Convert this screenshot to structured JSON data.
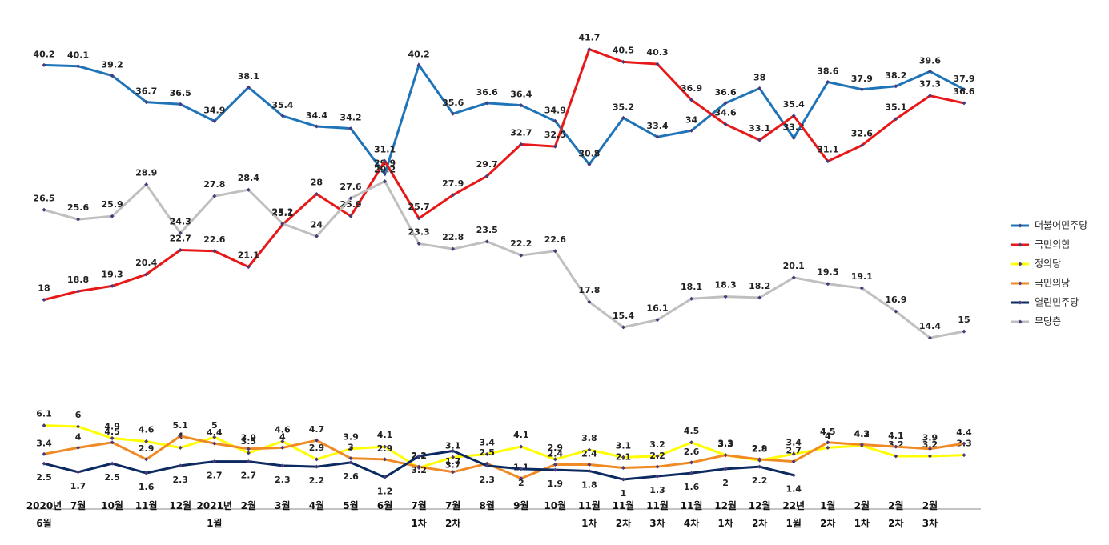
{
  "chart_data": {
    "type": "line",
    "categories": [
      "2020년\n6월",
      "7월",
      "10월",
      "11월",
      "12월",
      "2021년\n1월",
      "2월",
      "3월",
      "4월",
      "5월",
      "6월",
      "7월\n1차",
      "7월\n2차",
      "8월",
      "9월",
      "10월",
      "11월\n1차",
      "11월\n2차",
      "11월\n3차",
      "11월\n4차",
      "12월\n1차",
      "12월\n2차",
      "22년\n1월",
      "1월\n2차",
      "2월\n1차",
      "2월\n2차",
      "2월\n3차",
      null
    ],
    "ylim": [
      -1.8,
      45
    ],
    "legend": "right",
    "series": [
      {
        "name": "더불어민주당",
        "color": "#1f74b8",
        "values": [
          40.2,
          40.1,
          39.2,
          36.7,
          36.5,
          34.9,
          38.1,
          35.4,
          34.4,
          34.2,
          29.9,
          40.2,
          35.6,
          36.6,
          36.4,
          34.9,
          30.8,
          35.2,
          33.4,
          34.0,
          36.6,
          38.0,
          33.3,
          38.6,
          37.9,
          38.2,
          39.6,
          37.9
        ]
      },
      {
        "name": "국민의힘",
        "color": "#e81818",
        "values": [
          18.0,
          18.8,
          19.3,
          20.4,
          22.7,
          22.6,
          21.1,
          25.1,
          28.0,
          25.9,
          31.1,
          25.7,
          27.9,
          29.7,
          32.7,
          32.5,
          41.7,
          40.5,
          40.3,
          36.9,
          34.6,
          33.1,
          35.4,
          31.1,
          32.6,
          35.1,
          37.3,
          36.6
        ]
      },
      {
        "name": "정의당",
        "color": "#ffff00",
        "values": [
          6.1,
          6.0,
          4.9,
          4.6,
          4.0,
          5.0,
          3.5,
          4.6,
          2.9,
          3.9,
          4.1,
          2.1,
          3.1,
          3.4,
          4.1,
          2.9,
          3.8,
          3.1,
          3.2,
          4.5,
          3.3,
          2.8,
          3.4,
          4.0,
          4.2,
          3.2,
          3.2,
          3.3
        ]
      },
      {
        "name": "국민의당",
        "color": "#f08a24",
        "values": [
          3.4,
          4.0,
          4.5,
          2.9,
          5.1,
          4.4,
          3.9,
          4.0,
          4.7,
          3.0,
          2.9,
          2.2,
          1.7,
          2.5,
          1.1,
          2.4,
          2.4,
          2.1,
          2.2,
          2.6,
          3.3,
          2.9,
          2.7,
          4.5,
          4.3,
          4.1,
          3.9,
          4.4
        ]
      },
      {
        "name": "열린민주당",
        "color": "#0b2a60",
        "values": [
          2.5,
          1.7,
          2.5,
          1.6,
          2.3,
          2.7,
          2.7,
          2.3,
          2.2,
          2.6,
          1.2,
          3.2,
          3.7,
          2.3,
          2.0,
          1.9,
          1.8,
          1.0,
          1.3,
          1.6,
          2.0,
          2.2,
          1.4,
          null,
          null,
          null,
          null,
          null
        ]
      },
      {
        "name": "무당층",
        "color": "#bfbfbf",
        "values": [
          26.5,
          25.6,
          25.9,
          28.9,
          24.3,
          27.8,
          28.4,
          25.2,
          24.0,
          27.6,
          29.2,
          23.3,
          22.8,
          23.5,
          22.2,
          22.6,
          17.8,
          15.4,
          16.1,
          18.1,
          18.3,
          18.2,
          20.1,
          19.5,
          19.1,
          16.9,
          14.4,
          15.0
        ]
      }
    ]
  }
}
